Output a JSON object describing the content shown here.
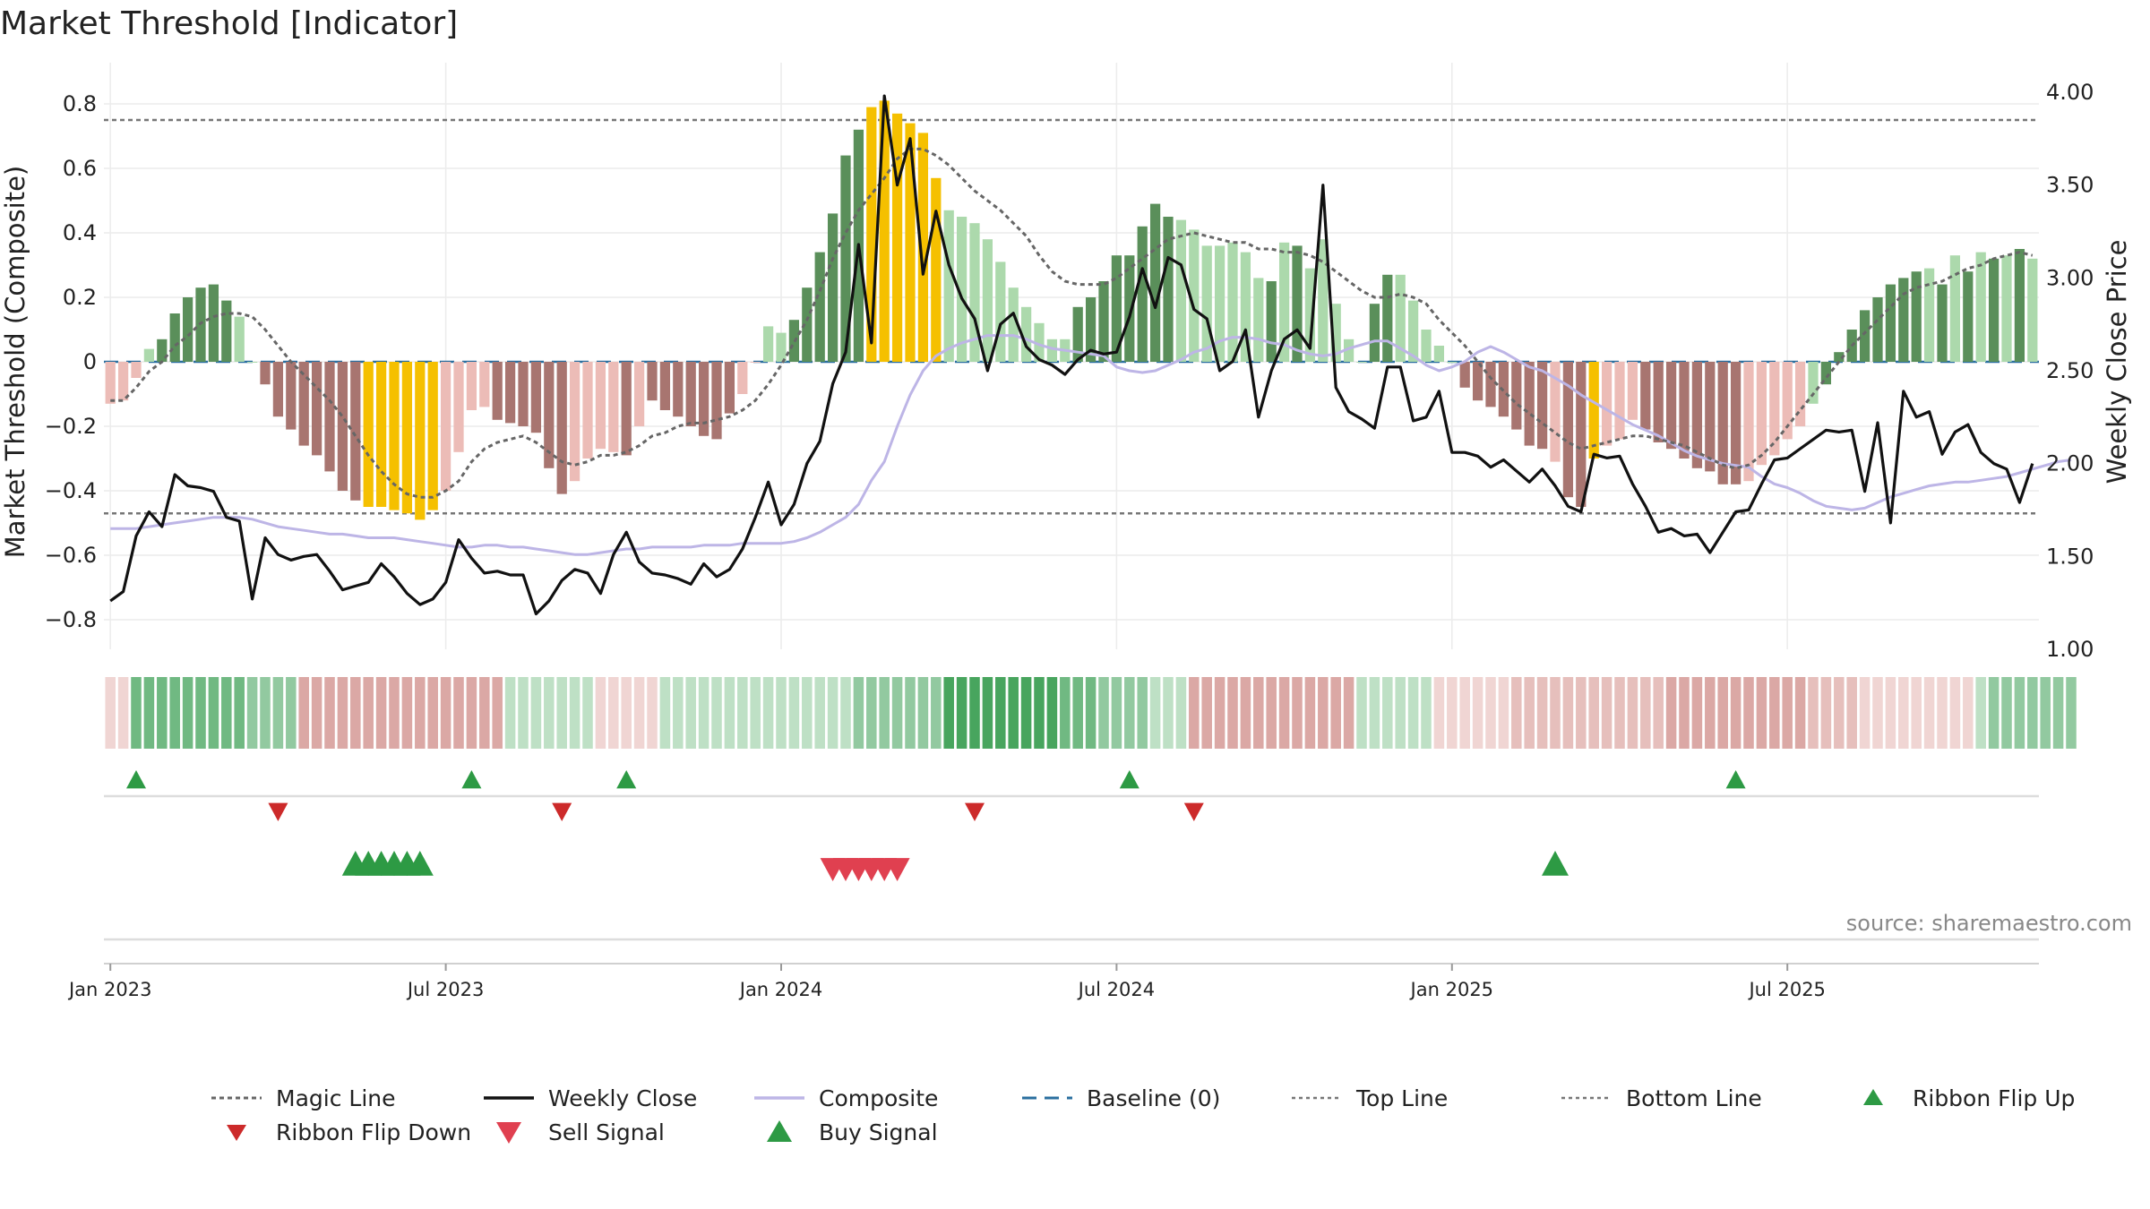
{
  "chart_data": {
    "type": "bar",
    "title": "Market Threshold [Indicator]",
    "ylabel_left": "Market Threshold (Composite)",
    "ylabel_right": "Weekly Close Price",
    "ylim_left": [
      -0.9,
      0.9
    ],
    "ylim_right": [
      1.0,
      4.0
    ],
    "yticks_left": [
      0.8,
      0.6,
      0.4,
      0.2,
      0,
      -0.2,
      -0.4,
      -0.6,
      -0.8
    ],
    "yticks_left_labels": [
      "0.8",
      "0.6",
      "0.4",
      "0.2",
      "0",
      "−0.2",
      "−0.4",
      "−0.6",
      "−0.8"
    ],
    "yticks_right": [
      4.0,
      3.5,
      3.0,
      2.5,
      2.0,
      1.5,
      1.0
    ],
    "yticks_right_labels": [
      "4.00",
      "3.50",
      "3.00",
      "2.50",
      "2.00",
      "1.50",
      "1.00"
    ],
    "x_ticks": [
      {
        "label": "Jan 2023",
        "week": 1
      },
      {
        "label": "Jul 2023",
        "week": 27
      },
      {
        "label": "Jan 2024",
        "week": 53
      },
      {
        "label": "Jul 2024",
        "week": 79
      },
      {
        "label": "Jan 2025",
        "week": 105
      },
      {
        "label": "Jul 2025",
        "week": 131
      }
    ],
    "top_line": 0.75,
    "bottom_line": -0.47,
    "baseline": 0,
    "grid": true,
    "legend_position": "bottom",
    "colors": {
      "bar_pos_strong": "#5a8f5a",
      "bar_pos_weak": "#acd9ac",
      "bar_neg_strong": "#a87570",
      "bar_neg_weak": "#ecbcb7",
      "bar_extreme": "#f5c000",
      "weekly_close": "#111111",
      "composite": "#bdb5e6",
      "magic_line": "#666666",
      "baseline": "#2a6f9f",
      "threshold_line": "#777777",
      "ribbon_flip_up": "#2d9a44",
      "ribbon_flip_down": "#cc2a2a",
      "sell_signal": "#e04050",
      "buy_signal": "#2d9a44"
    },
    "bars": {
      "values": [
        -0.13,
        -0.12,
        -0.05,
        0.04,
        0.07,
        0.15,
        0.2,
        0.23,
        0.24,
        0.19,
        0.14,
        0.0,
        -0.07,
        -0.17,
        -0.21,
        -0.26,
        -0.29,
        -0.34,
        -0.4,
        -0.43,
        -0.45,
        -0.45,
        -0.46,
        -0.47,
        -0.49,
        -0.46,
        -0.4,
        -0.28,
        -0.15,
        -0.14,
        -0.18,
        -0.19,
        -0.2,
        -0.22,
        -0.33,
        -0.41,
        -0.37,
        -0.3,
        -0.27,
        -0.28,
        -0.29,
        -0.2,
        -0.12,
        -0.15,
        -0.17,
        -0.2,
        -0.23,
        -0.24,
        -0.16,
        -0.1,
        0.0,
        0.11,
        0.09,
        0.13,
        0.23,
        0.34,
        0.46,
        0.64,
        0.72,
        0.79,
        0.81,
        0.77,
        0.74,
        0.71,
        0.57,
        0.47,
        0.45,
        0.43,
        0.38,
        0.31,
        0.23,
        0.17,
        0.12,
        0.07,
        0.07,
        0.17,
        0.2,
        0.25,
        0.33,
        0.33,
        0.42,
        0.49,
        0.45,
        0.44,
        0.41,
        0.36,
        0.36,
        0.37,
        0.34,
        0.26,
        0.25,
        0.37,
        0.36,
        0.29,
        0.38,
        0.18,
        0.07,
        0.0,
        0.18,
        0.27,
        0.27,
        0.19,
        0.1,
        0.05,
        0.0,
        -0.08,
        -0.12,
        -0.14,
        -0.17,
        -0.21,
        -0.26,
        -0.27,
        -0.31,
        -0.42,
        -0.45,
        -0.3,
        -0.26,
        -0.24,
        -0.18,
        -0.21,
        -0.25,
        -0.27,
        -0.3,
        -0.33,
        -0.34,
        -0.38,
        -0.38,
        -0.37,
        -0.32,
        -0.29,
        -0.24,
        -0.2,
        -0.13,
        -0.07,
        0.03,
        0.1,
        0.16,
        0.2,
        0.24,
        0.26,
        0.28,
        0.29,
        0.24,
        0.33,
        0.28,
        0.34,
        0.32,
        0.33,
        0.35,
        0.32
      ],
      "colors": [
        "nw",
        "nw",
        "nw",
        "pw",
        "ps",
        "ps",
        "ps",
        "ps",
        "ps",
        "ps",
        "pw",
        "pw",
        "ns",
        "ns",
        "ns",
        "ns",
        "ns",
        "ns",
        "ns",
        "ns",
        "ex",
        "ex",
        "ex",
        "ex",
        "ex",
        "ex",
        "nw",
        "nw",
        "nw",
        "nw",
        "ns",
        "ns",
        "ns",
        "ns",
        "ns",
        "ns",
        "nw",
        "nw",
        "nw",
        "nw",
        "ns",
        "nw",
        "ns",
        "ns",
        "ns",
        "ns",
        "ns",
        "ns",
        "ns",
        "nw",
        "nw",
        "pw",
        "pw",
        "ps",
        "ps",
        "ps",
        "ps",
        "ps",
        "ps",
        "ex",
        "ex",
        "ex",
        "ex",
        "ex",
        "ex",
        "pw",
        "pw",
        "pw",
        "pw",
        "pw",
        "pw",
        "pw",
        "pw",
        "pw",
        "pw",
        "ps",
        "ps",
        "ps",
        "ps",
        "ps",
        "ps",
        "ps",
        "ps",
        "pw",
        "pw",
        "pw",
        "pw",
        "pw",
        "pw",
        "pw",
        "ps",
        "pw",
        "ps",
        "pw",
        "pw",
        "pw",
        "pw",
        "pw",
        "ps",
        "ps",
        "pw",
        "pw",
        "pw",
        "pw",
        "pw",
        "ns",
        "ns",
        "ns",
        "ns",
        "ns",
        "ns",
        "ns",
        "nw",
        "ns",
        "ns",
        "ex",
        "nw",
        "nw",
        "nw",
        "ns",
        "ns",
        "ns",
        "ns",
        "ns",
        "ns",
        "ns",
        "ns",
        "nw",
        "nw",
        "nw",
        "nw",
        "nw",
        "pw",
        "ps",
        "ps",
        "ps",
        "ps",
        "ps",
        "ps",
        "ps",
        "ps",
        "pw",
        "ps",
        "pw",
        "ps",
        "pw",
        "ps",
        "pw",
        "ps",
        "pw"
      ]
    },
    "magic_line": [
      -0.12,
      -0.12,
      -0.08,
      -0.03,
      0.0,
      0.05,
      0.08,
      0.12,
      0.14,
      0.15,
      0.15,
      0.14,
      0.1,
      0.05,
      0.0,
      -0.04,
      -0.08,
      -0.12,
      -0.17,
      -0.23,
      -0.29,
      -0.34,
      -0.38,
      -0.41,
      -0.42,
      -0.42,
      -0.4,
      -0.37,
      -0.31,
      -0.27,
      -0.25,
      -0.24,
      -0.23,
      -0.25,
      -0.28,
      -0.31,
      -0.32,
      -0.31,
      -0.29,
      -0.29,
      -0.28,
      -0.26,
      -0.23,
      -0.22,
      -0.2,
      -0.19,
      -0.19,
      -0.18,
      -0.17,
      -0.15,
      -0.12,
      -0.07,
      -0.01,
      0.06,
      0.13,
      0.22,
      0.32,
      0.4,
      0.47,
      0.52,
      0.57,
      0.63,
      0.66,
      0.66,
      0.64,
      0.61,
      0.57,
      0.53,
      0.5,
      0.47,
      0.43,
      0.39,
      0.33,
      0.28,
      0.25,
      0.24,
      0.24,
      0.24,
      0.26,
      0.29,
      0.32,
      0.35,
      0.38,
      0.39,
      0.4,
      0.39,
      0.38,
      0.37,
      0.37,
      0.35,
      0.35,
      0.34,
      0.34,
      0.33,
      0.31,
      0.28,
      0.25,
      0.22,
      0.2,
      0.2,
      0.21,
      0.2,
      0.18,
      0.13,
      0.09,
      0.05,
      0.0,
      -0.05,
      -0.09,
      -0.13,
      -0.16,
      -0.19,
      -0.22,
      -0.25,
      -0.27,
      -0.26,
      -0.25,
      -0.24,
      -0.23,
      -0.23,
      -0.24,
      -0.25,
      -0.26,
      -0.28,
      -0.3,
      -0.32,
      -0.33,
      -0.32,
      -0.29,
      -0.25,
      -0.2,
      -0.15,
      -0.1,
      -0.05,
      0.0,
      0.05,
      0.09,
      0.13,
      0.17,
      0.21,
      0.23,
      0.24,
      0.25,
      0.27,
      0.29,
      0.3,
      0.32,
      0.33,
      0.34,
      0.33
    ],
    "composite": [
      1.65,
      1.65,
      1.65,
      1.66,
      1.67,
      1.68,
      1.69,
      1.7,
      1.71,
      1.71,
      1.71,
      1.7,
      1.68,
      1.66,
      1.65,
      1.64,
      1.63,
      1.62,
      1.62,
      1.61,
      1.6,
      1.6,
      1.6,
      1.59,
      1.58,
      1.57,
      1.56,
      1.55,
      1.55,
      1.56,
      1.56,
      1.55,
      1.55,
      1.54,
      1.53,
      1.52,
      1.51,
      1.51,
      1.52,
      1.53,
      1.54,
      1.54,
      1.55,
      1.55,
      1.55,
      1.55,
      1.56,
      1.56,
      1.56,
      1.57,
      1.57,
      1.57,
      1.57,
      1.58,
      1.6,
      1.63,
      1.67,
      1.71,
      1.78,
      1.91,
      2.01,
      2.2,
      2.37,
      2.5,
      2.58,
      2.62,
      2.65,
      2.67,
      2.69,
      2.69,
      2.69,
      2.67,
      2.64,
      2.62,
      2.61,
      2.6,
      2.59,
      2.58,
      2.52,
      2.5,
      2.49,
      2.5,
      2.53,
      2.56,
      2.6,
      2.62,
      2.66,
      2.68,
      2.68,
      2.67,
      2.65,
      2.64,
      2.61,
      2.59,
      2.58,
      2.59,
      2.62,
      2.64,
      2.66,
      2.66,
      2.62,
      2.58,
      2.53,
      2.5,
      2.52,
      2.55,
      2.6,
      2.63,
      2.6,
      2.56,
      2.52,
      2.5,
      2.46,
      2.42,
      2.37,
      2.33,
      2.29,
      2.25,
      2.21,
      2.18,
      2.15,
      2.11,
      2.07,
      2.04,
      2.02,
      2.0,
      1.99,
      1.98,
      1.93,
      1.89,
      1.87,
      1.84,
      1.8,
      1.77,
      1.76,
      1.75,
      1.76,
      1.79,
      1.82,
      1.84,
      1.86,
      1.88,
      1.89,
      1.9,
      1.9,
      1.91,
      1.92,
      1.93,
      1.95,
      1.97,
      1.99,
      2.01,
      2.02
    ],
    "weekly_close": [
      1.26,
      1.31,
      1.61,
      1.74,
      1.66,
      1.94,
      1.88,
      1.87,
      1.85,
      1.71,
      1.69,
      1.27,
      1.6,
      1.51,
      1.48,
      1.5,
      1.51,
      1.42,
      1.32,
      1.34,
      1.36,
      1.46,
      1.39,
      1.3,
      1.24,
      1.27,
      1.36,
      1.59,
      1.49,
      1.41,
      1.42,
      1.4,
      1.4,
      1.19,
      1.26,
      1.37,
      1.43,
      1.41,
      1.3,
      1.51,
      1.63,
      1.47,
      1.41,
      1.4,
      1.38,
      1.35,
      1.46,
      1.39,
      1.43,
      1.54,
      1.71,
      1.9,
      1.67,
      1.78,
      2.0,
      2.12,
      2.43,
      2.6,
      3.18,
      2.65,
      3.98,
      3.5,
      3.75,
      3.02,
      3.36,
      3.07,
      2.89,
      2.78,
      2.5,
      2.75,
      2.81,
      2.63,
      2.56,
      2.53,
      2.48,
      2.56,
      2.61,
      2.59,
      2.6,
      2.79,
      3.05,
      2.84,
      3.11,
      3.07,
      2.83,
      2.78,
      2.5,
      2.55,
      2.72,
      2.25,
      2.5,
      2.67,
      2.72,
      2.62,
      3.5,
      2.41,
      2.28,
      2.24,
      2.19,
      2.52,
      2.52,
      2.23,
      2.25,
      2.39,
      2.06,
      2.06,
      2.04,
      1.98,
      2.02,
      1.96,
      1.9,
      1.97,
      1.88,
      1.77,
      1.74,
      2.05,
      2.03,
      2.04,
      1.89,
      1.77,
      1.63,
      1.65,
      1.61,
      1.62,
      1.52,
      1.63,
      1.74,
      1.75,
      1.89,
      2.02,
      2.03,
      2.08,
      2.13,
      2.18,
      2.17,
      2.18,
      1.85,
      2.22,
      1.68,
      2.39,
      2.25,
      2.28,
      2.05,
      2.17,
      2.21,
      2.06,
      2.0,
      1.97,
      1.79,
      2.0
    ],
    "ribbon_colors": [
      "#f0d5d3",
      "#f0d5d3",
      "#70b982",
      "#70b982",
      "#70b982",
      "#70b982",
      "#70b982",
      "#70b982",
      "#70b982",
      "#70b982",
      "#70b982",
      "#92c9a0",
      "#92c9a0",
      "#92c9a0",
      "#92c9a0",
      "#dba8a5",
      "#dba8a5",
      "#dba8a5",
      "#dba8a5",
      "#dba8a5",
      "#dba8a5",
      "#dba8a5",
      "#dba8a5",
      "#dba8a5",
      "#dba8a5",
      "#dba8a5",
      "#dba8a5",
      "#dba8a5",
      "#dba8a5",
      "#dba8a5",
      "#dba8a5",
      "#bee0c5",
      "#bee0c5",
      "#bee0c5",
      "#bee0c5",
      "#bee0c5",
      "#bee0c5",
      "#bee0c5",
      "#f0d5d3",
      "#f0d5d3",
      "#f0d5d3",
      "#f0d5d3",
      "#f0d5d3",
      "#bee0c5",
      "#bee0c5",
      "#bee0c5",
      "#bee0c5",
      "#bee0c5",
      "#bee0c5",
      "#bee0c5",
      "#bee0c5",
      "#bee0c5",
      "#bee0c5",
      "#bee0c5",
      "#bee0c5",
      "#bee0c5",
      "#bee0c5",
      "#bee0c5",
      "#92c9a0",
      "#92c9a0",
      "#92c9a0",
      "#92c9a0",
      "#92c9a0",
      "#92c9a0",
      "#92c9a0",
      "#48a55e",
      "#48a55e",
      "#48a55e",
      "#48a55e",
      "#48a55e",
      "#48a55e",
      "#48a55e",
      "#48a55e",
      "#48a55e",
      "#70b982",
      "#70b982",
      "#70b982",
      "#92c9a0",
      "#92c9a0",
      "#92c9a0",
      "#92c9a0",
      "#bee0c5",
      "#bee0c5",
      "#bee0c5",
      "#dba8a5",
      "#dba8a5",
      "#dba8a5",
      "#dba8a5",
      "#dba8a5",
      "#dba8a5",
      "#dba8a5",
      "#dba8a5",
      "#dba8a5",
      "#dba8a5",
      "#dba8a5",
      "#dba8a5",
      "#dba8a5",
      "#bee0c5",
      "#bee0c5",
      "#bee0c5",
      "#bee0c5",
      "#bee0c5",
      "#bee0c5",
      "#f0d5d3",
      "#f0d5d3",
      "#f0d5d3",
      "#f0d5d3",
      "#f0d5d3",
      "#f0d5d3",
      "#e6bfbc",
      "#e6bfbc",
      "#e6bfbc",
      "#e6bfbc",
      "#e6bfbc",
      "#e6bfbc",
      "#e6bfbc",
      "#e6bfbc",
      "#e6bfbc",
      "#e6bfbc",
      "#e6bfbc",
      "#e6bfbc",
      "#dba8a5",
      "#dba8a5",
      "#dba8a5",
      "#dba8a5",
      "#dba8a5",
      "#dba8a5",
      "#dba8a5",
      "#dba8a5",
      "#dba8a5",
      "#dba8a5",
      "#dba8a5",
      "#e6bfbc",
      "#e6bfbc",
      "#e6bfbc",
      "#e6bfbc",
      "#f0d5d3",
      "#f0d5d3",
      "#f0d5d3",
      "#f0d5d3",
      "#f0d5d3",
      "#f0d5d3",
      "#f0d5d3",
      "#f0d5d3",
      "#f0d5d3",
      "#bee0c5",
      "#92c9a0",
      "#92c9a0",
      "#92c9a0",
      "#92c9a0",
      "#92c9a0",
      "#92c9a0",
      "#92c9a0"
    ],
    "ribbon_flip_up_weeks": [
      3,
      29,
      41,
      80,
      127
    ],
    "ribbon_flip_down_weeks": [
      14,
      36,
      68,
      85
    ],
    "sell_signal_weeks": [
      57,
      58,
      59,
      60,
      61,
      62
    ],
    "buy_signal_weeks": [
      20,
      21,
      22,
      23,
      24,
      25,
      113
    ],
    "legend": [
      "Magic Line",
      "Weekly Close",
      "Composite",
      "Baseline (0)",
      "Top Line",
      "Bottom Line",
      "Ribbon Flip Up",
      "Ribbon Flip Down",
      "Sell Signal",
      "Buy Signal"
    ],
    "source": "source: sharemaestro.com"
  }
}
